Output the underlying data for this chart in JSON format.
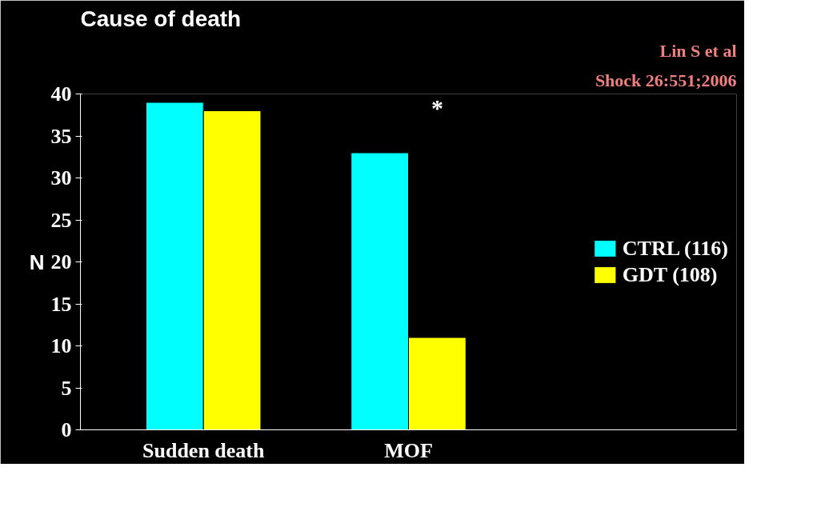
{
  "chart_data": {
    "type": "bar",
    "title": "Cause of death",
    "ylabel": "N",
    "categories": [
      "Sudden death",
      "MOF"
    ],
    "series": [
      {
        "name": "CTRL (116)",
        "color": "#00ffff",
        "values": [
          39,
          33
        ]
      },
      {
        "name": "GDT (108)",
        "color": "#ffff00",
        "values": [
          38,
          11
        ]
      }
    ],
    "ylim": [
      0,
      40
    ],
    "yticks": [
      0,
      5,
      10,
      15,
      20,
      25,
      30,
      35,
      40
    ],
    "legend": "right",
    "grid": false,
    "annotations": [
      "*",
      "Lin S et al",
      "Shock 26:551;2006"
    ]
  }
}
